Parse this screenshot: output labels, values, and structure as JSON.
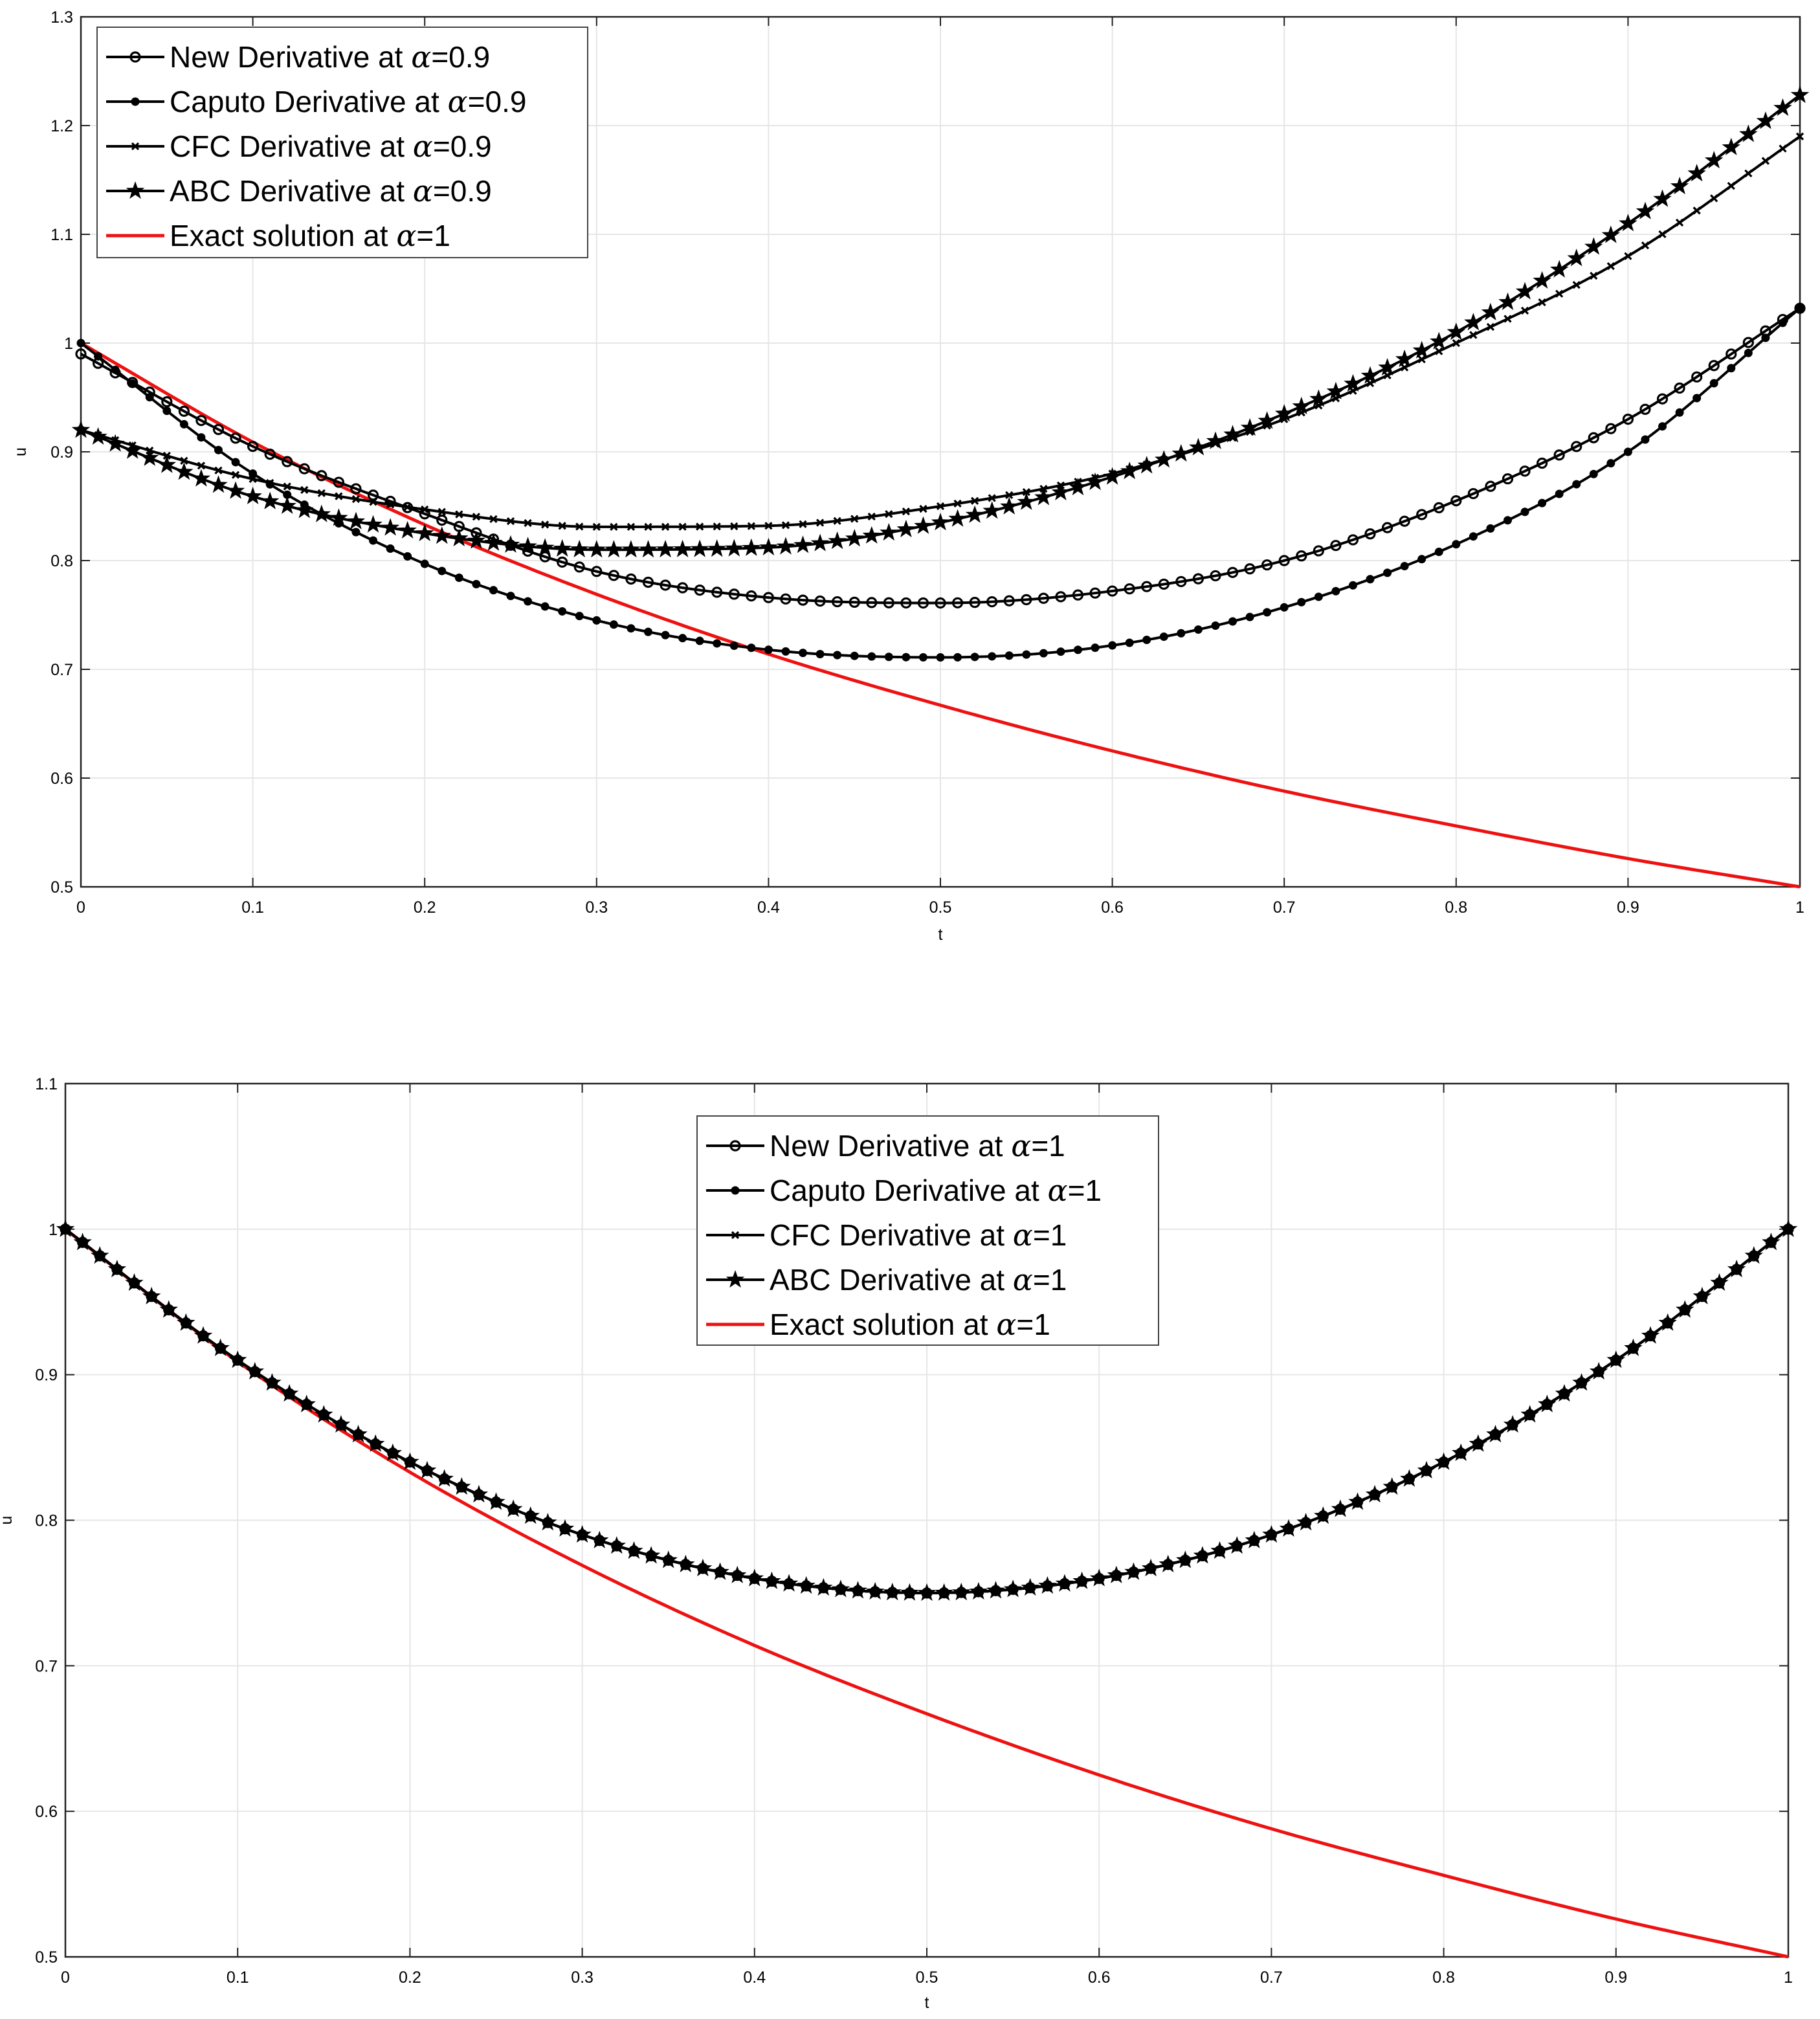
{
  "colors": {
    "series": "#000000",
    "exact": "#ee1111",
    "grid": "#e6e6e6",
    "frame": "#222222"
  },
  "chart_data": [
    {
      "type": "line",
      "xlabel": "t",
      "ylabel": "u",
      "xlim": [
        0,
        1
      ],
      "ylim": [
        0.5,
        1.3
      ],
      "grid": true,
      "legend_position": "top-left",
      "x_ticks": [
        "0",
        "0.1",
        "0.2",
        "0.3",
        "0.4",
        "0.5",
        "0.6",
        "0.7",
        "0.8",
        "0.9",
        "1"
      ],
      "y_ticks": [
        "0.5",
        "0.6",
        "0.7",
        "0.8",
        "0.9",
        "1",
        "1.1",
        "1.2",
        "1.3"
      ],
      "x": [
        0,
        0.1,
        0.2,
        0.3,
        0.4,
        0.5,
        0.6,
        0.7,
        0.8,
        0.9,
        1.0
      ],
      "series": [
        {
          "name": "New Derivative at α=0.9",
          "prefix": "New Derivative at ",
          "value": "=0.9",
          "marker": "open-circle",
          "values": [
            0.99,
            0.905,
            0.843,
            0.79,
            0.766,
            0.761,
            0.772,
            0.8,
            0.855,
            0.93,
            1.032
          ]
        },
        {
          "name": "Caputo Derivative at α=0.9",
          "prefix": "Caputo Derivative at ",
          "value": "=0.9",
          "marker": "dot",
          "values": [
            1.0,
            0.88,
            0.797,
            0.745,
            0.718,
            0.711,
            0.722,
            0.757,
            0.815,
            0.9,
            1.032
          ]
        },
        {
          "name": "CFC Derivative at α=0.9",
          "prefix": "CFC Derivative at ",
          "value": "=0.9",
          "marker": "x",
          "values": [
            0.92,
            0.875,
            0.847,
            0.831,
            0.832,
            0.85,
            0.88,
            0.93,
            1.0,
            1.08,
            1.19
          ]
        },
        {
          "name": "ABC Derivative at α=0.9",
          "prefix": "ABC Derivative at ",
          "value": "=0.9",
          "marker": "star",
          "values": [
            0.92,
            0.859,
            0.825,
            0.81,
            0.812,
            0.835,
            0.877,
            0.935,
            1.01,
            1.11,
            1.228
          ]
        },
        {
          "name": "Exact solution at α=1",
          "prefix": "Exact solution at ",
          "value": "=1",
          "marker": "none",
          "values": [
            1.0,
            0.909,
            0.833,
            0.769,
            0.714,
            0.667,
            0.625,
            0.588,
            0.556,
            0.526,
            0.5
          ]
        }
      ]
    },
    {
      "type": "line",
      "xlabel": "t",
      "ylabel": "u",
      "xlim": [
        0,
        1
      ],
      "ylim": [
        0.5,
        1.1
      ],
      "grid": true,
      "legend_position": "top-center",
      "x_ticks": [
        "0",
        "0.1",
        "0.2",
        "0.3",
        "0.4",
        "0.5",
        "0.6",
        "0.7",
        "0.8",
        "0.9",
        "1"
      ],
      "y_ticks": [
        "0.5",
        "0.6",
        "0.7",
        "0.8",
        "0.9",
        "1",
        "1.1"
      ],
      "x": [
        0,
        0.1,
        0.2,
        0.3,
        0.4,
        0.5,
        0.6,
        0.7,
        0.8,
        0.9,
        1.0
      ],
      "series": [
        {
          "name": "New Derivative at α=1",
          "prefix": "New Derivative at ",
          "value": "=1",
          "marker": "open-circle",
          "values": [
            1.0,
            0.91,
            0.84,
            0.79,
            0.76,
            0.75,
            0.76,
            0.79,
            0.84,
            0.91,
            1.0
          ]
        },
        {
          "name": "Caputo Derivative at α=1",
          "prefix": "Caputo Derivative at ",
          "value": "=1",
          "marker": "dot",
          "values": [
            1.0,
            0.91,
            0.84,
            0.79,
            0.76,
            0.75,
            0.76,
            0.79,
            0.84,
            0.91,
            1.0
          ]
        },
        {
          "name": "CFC Derivative at α=1",
          "prefix": "CFC Derivative at ",
          "value": "=1",
          "marker": "x",
          "values": [
            1.0,
            0.91,
            0.84,
            0.79,
            0.76,
            0.75,
            0.76,
            0.79,
            0.84,
            0.91,
            1.0
          ]
        },
        {
          "name": "ABC Derivative at α=1",
          "prefix": "ABC Derivative at ",
          "value": "=1",
          "marker": "star",
          "values": [
            1.0,
            0.91,
            0.84,
            0.79,
            0.76,
            0.75,
            0.76,
            0.79,
            0.84,
            0.91,
            1.0
          ]
        },
        {
          "name": "Exact solution at α=1",
          "prefix": "Exact solution at ",
          "value": "=1",
          "marker": "none",
          "values": [
            1.0,
            0.909,
            0.833,
            0.769,
            0.714,
            0.667,
            0.625,
            0.588,
            0.556,
            0.526,
            0.5
          ]
        }
      ]
    }
  ]
}
